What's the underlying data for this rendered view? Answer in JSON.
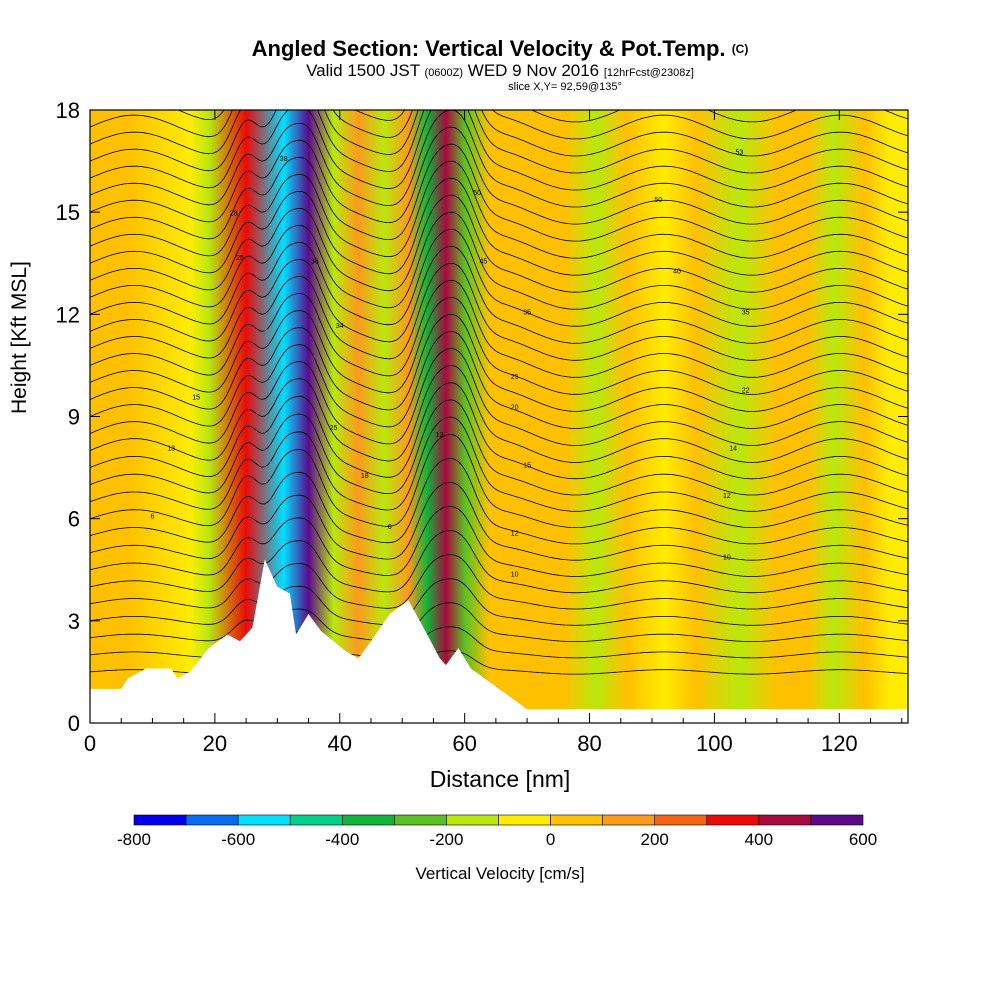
{
  "header": {
    "title": "Angled Section: Vertical Velocity & Pot.Temp.",
    "title_unit": "(C)",
    "valid_prefix": "Valid 1500 JST",
    "valid_z": "(0600Z)",
    "valid_date": "WED 9 Nov 2016",
    "forecast": "[12hrFcst@2308z]",
    "slice": "slice X,Y= 92,59@135°"
  },
  "chart_data": {
    "type": "heatmap",
    "title": "Angled Section: Vertical Velocity & Pot.Temp.",
    "xlabel": "Distance [nm]",
    "ylabel": "Height [Kft MSL]",
    "xlim": [
      0,
      131
    ],
    "ylim": [
      0,
      18
    ],
    "x_ticks": [
      0,
      20,
      40,
      60,
      80,
      100,
      120
    ],
    "y_ticks": [
      0,
      3,
      6,
      9,
      12,
      15,
      18
    ],
    "colorbar": {
      "label": "Vertical Velocity [cm/s]",
      "ticks": [
        -800,
        -600,
        -400,
        -200,
        0,
        200,
        400,
        600
      ],
      "bins": [
        {
          "from": -800,
          "to": -700,
          "color": "#0000ee"
        },
        {
          "from": -700,
          "to": -600,
          "color": "#0a6bf0"
        },
        {
          "from": -600,
          "to": -500,
          "color": "#00e0ff"
        },
        {
          "from": -500,
          "to": -400,
          "color": "#00d08a"
        },
        {
          "from": -400,
          "to": -300,
          "color": "#12b33a"
        },
        {
          "from": -300,
          "to": -200,
          "color": "#5ac023"
        },
        {
          "from": -200,
          "to": -100,
          "color": "#b9e80e"
        },
        {
          "from": -100,
          "to": 0,
          "color": "#ffec00"
        },
        {
          "from": 0,
          "to": 100,
          "color": "#ffc000"
        },
        {
          "from": 100,
          "to": 200,
          "color": "#fb9a1c"
        },
        {
          "from": 200,
          "to": 300,
          "color": "#f36414"
        },
        {
          "from": 300,
          "to": 400,
          "color": "#ea0a0a"
        },
        {
          "from": 400,
          "to": 500,
          "color": "#a8093f"
        },
        {
          "from": 500,
          "to": 600,
          "color": "#5b0a8c"
        }
      ]
    },
    "velocity_bands": [
      {
        "x": 6,
        "value": 20
      },
      {
        "x": 16,
        "value": -50
      },
      {
        "x": 19,
        "value": -150
      },
      {
        "x": 25,
        "value": 380
      },
      {
        "x": 31,
        "value": -600
      },
      {
        "x": 35,
        "value": 520
      },
      {
        "x": 39,
        "value": -150
      },
      {
        "x": 43,
        "value": 120
      },
      {
        "x": 47,
        "value": -200
      },
      {
        "x": 51,
        "value": 150
      },
      {
        "x": 54,
        "value": -350
      },
      {
        "x": 57,
        "value": 400
      },
      {
        "x": 60,
        "value": -300
      },
      {
        "x": 64,
        "value": 80
      },
      {
        "x": 70,
        "value": 40
      },
      {
        "x": 76,
        "value": 30
      },
      {
        "x": 81,
        "value": -120
      },
      {
        "x": 86,
        "value": 40
      },
      {
        "x": 92,
        "value": -100
      },
      {
        "x": 97,
        "value": 20
      },
      {
        "x": 104,
        "value": -180
      },
      {
        "x": 110,
        "value": 20
      },
      {
        "x": 115,
        "value": 60
      },
      {
        "x": 119,
        "value": -130
      },
      {
        "x": 124,
        "value": 80
      },
      {
        "x": 128,
        "value": -60
      }
    ],
    "terrain": [
      [
        0,
        1.0
      ],
      [
        5,
        1.0
      ],
      [
        6,
        1.3
      ],
      [
        9,
        1.6
      ],
      [
        13,
        1.6
      ],
      [
        14,
        1.3
      ],
      [
        16,
        1.5
      ],
      [
        19,
        2.2
      ],
      [
        22,
        2.6
      ],
      [
        24,
        2.4
      ],
      [
        26,
        2.8
      ],
      [
        28,
        4.8
      ],
      [
        30,
        4.0
      ],
      [
        32,
        3.8
      ],
      [
        33,
        2.6
      ],
      [
        35,
        3.2
      ],
      [
        37,
        2.7
      ],
      [
        39,
        2.4
      ],
      [
        41,
        2.1
      ],
      [
        43,
        1.9
      ],
      [
        45,
        2.4
      ],
      [
        48,
        3.2
      ],
      [
        51,
        3.6
      ],
      [
        54,
        2.6
      ],
      [
        56,
        1.9
      ],
      [
        57,
        1.7
      ],
      [
        59,
        2.2
      ],
      [
        61,
        1.6
      ],
      [
        64,
        1.2
      ],
      [
        67,
        0.8
      ],
      [
        70,
        0.4
      ],
      [
        80,
        0.4
      ],
      [
        100,
        0.4
      ],
      [
        131,
        0.4
      ]
    ],
    "isentrope_labels": [
      {
        "x": 13,
        "y": 8.0,
        "text": "13"
      },
      {
        "x": 10,
        "y": 6.0,
        "text": "6"
      },
      {
        "x": 17,
        "y": 9.5,
        "text": "15"
      },
      {
        "x": 23,
        "y": 14.9,
        "text": "28"
      },
      {
        "x": 24,
        "y": 13.6,
        "text": "25"
      },
      {
        "x": 31,
        "y": 16.5,
        "text": "38"
      },
      {
        "x": 36,
        "y": 13.5,
        "text": "36"
      },
      {
        "x": 40,
        "y": 11.6,
        "text": "34"
      },
      {
        "x": 39,
        "y": 8.6,
        "text": "25"
      },
      {
        "x": 44,
        "y": 7.2,
        "text": "18"
      },
      {
        "x": 48,
        "y": 5.7,
        "text": "6"
      },
      {
        "x": 56,
        "y": 8.4,
        "text": "13"
      },
      {
        "x": 62,
        "y": 15.5,
        "text": "50"
      },
      {
        "x": 63,
        "y": 13.5,
        "text": "45"
      },
      {
        "x": 70,
        "y": 12.0,
        "text": "35"
      },
      {
        "x": 68,
        "y": 10.1,
        "text": "25"
      },
      {
        "x": 68,
        "y": 9.2,
        "text": "20"
      },
      {
        "x": 70,
        "y": 7.5,
        "text": "15"
      },
      {
        "x": 68,
        "y": 5.5,
        "text": "12"
      },
      {
        "x": 68,
        "y": 4.3,
        "text": "10"
      },
      {
        "x": 91,
        "y": 15.3,
        "text": "50"
      },
      {
        "x": 94,
        "y": 13.2,
        "text": "40"
      },
      {
        "x": 104,
        "y": 16.7,
        "text": "53"
      },
      {
        "x": 105,
        "y": 12.0,
        "text": "35"
      },
      {
        "x": 105,
        "y": 9.7,
        "text": "22"
      },
      {
        "x": 103,
        "y": 8.0,
        "text": "14"
      },
      {
        "x": 102,
        "y": 6.6,
        "text": "12"
      },
      {
        "x": 102,
        "y": 4.8,
        "text": "10"
      }
    ]
  }
}
